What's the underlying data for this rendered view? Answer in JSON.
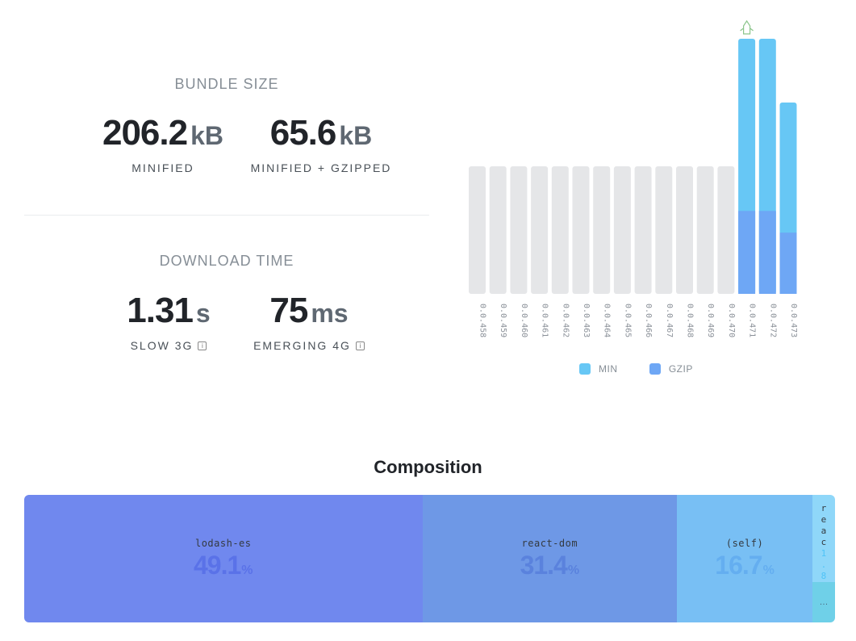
{
  "bundle": {
    "title": "BUNDLE SIZE",
    "minified": {
      "value": "206.2",
      "unit": "kB",
      "label": "MINIFIED"
    },
    "gzipped": {
      "value": "65.6",
      "unit": "kB",
      "label": "MINIFIED + GZIPPED"
    }
  },
  "download": {
    "title": "DOWNLOAD TIME",
    "slow": {
      "value": "1.31",
      "unit": "s",
      "label": "SLOW 3G",
      "info": "i"
    },
    "emerging": {
      "value": "75",
      "unit": "ms",
      "label": "EMERGING 4G",
      "info": "i"
    }
  },
  "chart_data": {
    "type": "bar",
    "categories": [
      "0.0.458",
      "0.0.459",
      "0.0.460",
      "0.0.461",
      "0.0.462",
      "0.0.463",
      "0.0.464",
      "0.0.465",
      "0.0.466",
      "0.0.467",
      "0.0.468",
      "0.0.469",
      "0.0.470",
      "0.0.471",
      "0.0.472",
      "0.0.473"
    ],
    "series": [
      {
        "name": "MIN",
        "values": [
          null,
          null,
          null,
          null,
          null,
          null,
          null,
          null,
          null,
          null,
          null,
          null,
          null,
          1.0,
          1.0,
          0.75
        ]
      },
      {
        "name": "GZIP",
        "values": [
          null,
          null,
          null,
          null,
          null,
          null,
          null,
          null,
          null,
          null,
          null,
          null,
          null,
          0.325,
          0.325,
          0.24
        ]
      }
    ],
    "unavailable_placeholder": true,
    "highlighted_category": "0.0.471",
    "legend_position": "bottom",
    "colors": {
      "min": "#67c7f5",
      "gzip": "#6ea7f5",
      "empty": "#e5e6e8"
    },
    "title": "",
    "xlabel": "",
    "ylabel": ""
  },
  "legend": {
    "min": "MIN",
    "gzip": "GZIP"
  },
  "composition": {
    "title": "Composition",
    "segments": [
      {
        "name": "lodash-es",
        "percent": "49.1",
        "share": 49.1,
        "color": "#7088ee",
        "pct_color": "#5a72e8"
      },
      {
        "name": "react-dom",
        "percent": "31.4",
        "share": 31.4,
        "color": "#6e98e6",
        "pct_color": "#5a82dd"
      },
      {
        "name": "(self)",
        "percent": "16.7",
        "share": 16.7,
        "color": "#78bff4",
        "pct_color": "#64aef0"
      }
    ],
    "tiny": {
      "label_text": "reac",
      "label_num": "1.8",
      "more": "…"
    },
    "pct_symbol": "%"
  }
}
